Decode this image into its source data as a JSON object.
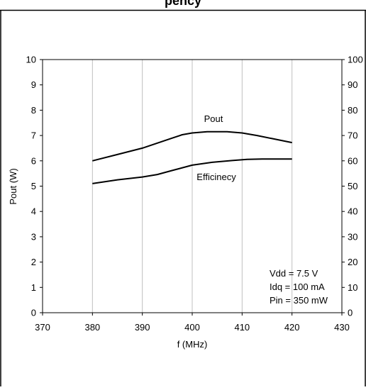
{
  "header": {
    "partial_title": "pency"
  },
  "chart_data": {
    "type": "line",
    "title": "",
    "xlabel": "f (MHz)",
    "ylabel": "Pout (W)",
    "y2label": "",
    "xlim": [
      370,
      430
    ],
    "ylim": [
      0,
      10
    ],
    "y2lim": [
      0,
      100
    ],
    "x_ticks": [
      370,
      380,
      390,
      400,
      410,
      420,
      430
    ],
    "y_ticks": [
      0,
      1,
      2,
      3,
      4,
      5,
      6,
      7,
      8,
      9,
      10
    ],
    "y2_ticks": [
      0,
      10,
      20,
      30,
      40,
      50,
      60,
      70,
      80,
      90,
      100
    ],
    "grid": "vertical",
    "series": [
      {
        "name": "Pout",
        "axis": "left",
        "x": [
          380,
          385,
          390,
          393,
          396,
          398,
          400,
          403,
          407,
          410,
          413,
          416,
          420
        ],
        "values": [
          6.0,
          6.25,
          6.5,
          6.7,
          6.9,
          7.03,
          7.1,
          7.15,
          7.15,
          7.1,
          7.0,
          6.88,
          6.72
        ]
      },
      {
        "name": "Efficinecy",
        "axis": "right",
        "x": [
          380,
          385,
          390,
          393,
          396,
          400,
          404,
          408,
          411,
          414,
          420
        ],
        "values": [
          51,
          52.5,
          53.6,
          54.6,
          56.2,
          58.3,
          59.4,
          60.1,
          60.6,
          60.7,
          60.7
        ]
      }
    ],
    "annotations": [
      "Vdd = 7.5 V",
      "Idq = 100 mA",
      "Pin = 350 mW"
    ],
    "colors": {
      "line": "#000000",
      "grid": "#c0c0c0",
      "axis": "#000000"
    }
  }
}
